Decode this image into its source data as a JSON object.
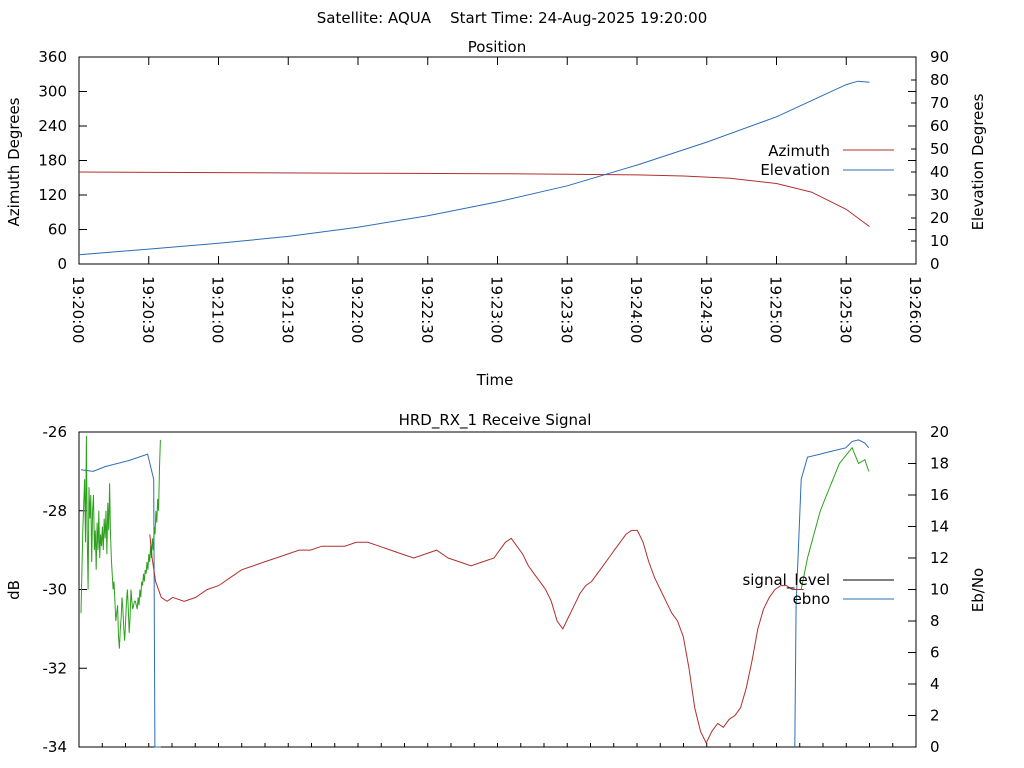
{
  "header": {
    "text": "Satellite: AQUA    Start Time: 24-Aug-2025 19:20:00"
  },
  "chart_data": [
    {
      "type": "line",
      "title": "Position",
      "xlabel": "Time",
      "ylabel": "Azimuth Degrees",
      "y2label": "Elevation Degrees",
      "ylim": [
        0,
        360
      ],
      "y2lim": [
        0,
        90
      ],
      "yticks": [
        "360",
        "300",
        "240",
        "180",
        "120",
        "60",
        "0"
      ],
      "y2ticks": [
        "90",
        "80",
        "70",
        "60",
        "50",
        "40",
        "30",
        "20",
        "10",
        "0"
      ],
      "xticks": [
        "19:20:00",
        "19:20:30",
        "19:21:00",
        "19:21:30",
        "19:22:00",
        "19:22:30",
        "19:23:00",
        "19:23:30",
        "19:24:00",
        "19:24:30",
        "19:25:00",
        "19:25:30",
        "19:26:00"
      ],
      "x_unit": "seconds after 19:20:00",
      "xlim": [
        0,
        360
      ],
      "legend": "right",
      "series": [
        {
          "name": "Azimuth",
          "axis": "y",
          "color": "#b03030",
          "x": [
            0,
            60,
            120,
            180,
            210,
            240,
            260,
            280,
            300,
            315,
            325,
            330,
            335,
            340
          ],
          "values": [
            160,
            159,
            158,
            157,
            156,
            155,
            153,
            149,
            140,
            125,
            105,
            95,
            80,
            65
          ]
        },
        {
          "name": "Elevation",
          "axis": "y2",
          "color": "#2e6db5",
          "x": [
            0,
            30,
            60,
            90,
            120,
            150,
            180,
            210,
            240,
            270,
            300,
            315,
            330,
            335,
            340
          ],
          "values": [
            4,
            6.5,
            9,
            12,
            16,
            21,
            27,
            34,
            43,
            53,
            64,
            71,
            78,
            79.5,
            79
          ]
        }
      ]
    },
    {
      "type": "line",
      "title": "HRD_RX_1 Receive Signal",
      "ylabel": "dB",
      "y2label": "Eb/No",
      "ylim": [
        -34,
        -26
      ],
      "y2lim": [
        0,
        20
      ],
      "yticks": [
        "-26",
        "-28",
        "-30",
        "-32",
        "-34"
      ],
      "y2ticks": [
        "20",
        "18",
        "16",
        "14",
        "12",
        "10",
        "8",
        "6",
        "4",
        "2",
        "0"
      ],
      "legend": "right",
      "series": [
        {
          "name": "signal_level",
          "axis": "y",
          "legend_color": "#000000",
          "color": "#2ea01e",
          "x": [
            0,
            2,
            4,
            5,
            6,
            7,
            8,
            9,
            10,
            11,
            12,
            13,
            14,
            15,
            16,
            17,
            18,
            19,
            20,
            21,
            22,
            23,
            24,
            25,
            26,
            27,
            28,
            29,
            30,
            31,
            32,
            33,
            34,
            35,
            36,
            37,
            38,
            39,
            40,
            41,
            42,
            43,
            44,
            45,
            46,
            47,
            48,
            49,
            50,
            51,
            52,
            53,
            54,
            55,
            56,
            57,
            58,
            59,
            60,
            61,
            62,
            63,
            64,
            65,
            66,
            67,
            68,
            69,
            70,
            71,
            72,
            73,
            74,
            75,
            76,
            77,
            78,
            79,
            80,
            81,
            82,
            83,
            84,
            85,
            86,
            87,
            88,
            89
          ],
          "values": [
            -30.6,
            -28.5,
            -27.2,
            -28.8,
            -26.1,
            -28.6,
            -30,
            -27.4,
            -28.2,
            -27.6,
            -29.3,
            -28.0,
            -27.6,
            -29.0,
            -28.5,
            -29.5,
            -28.3,
            -29.0,
            -28.0,
            -29.2,
            -28.6,
            -28.9,
            -28.4,
            -29.0,
            -28.2,
            -28.7,
            -28.0,
            -29.1,
            -27.8,
            -28.5,
            -27.3,
            -28.5,
            -29.2,
            -29.6,
            -30.0,
            -29.8,
            -30.3,
            -30.8,
            -30.6,
            -30.4,
            -31.2,
            -31.5,
            -31.0,
            -30.7,
            -30.2,
            -30.5,
            -31.0,
            -31.3,
            -30.8,
            -30.3,
            -30.0,
            -30.5,
            -31.1,
            -30.7,
            -30.0,
            -30.3,
            -30.5,
            -30.4,
            -30.3,
            -30.3,
            -30.4,
            -30.5,
            -30.2,
            -30.4,
            -30.0,
            -30.2,
            -29.8,
            -29.9,
            -29.6,
            -29.8,
            -29.5,
            -29.6,
            -29.3,
            -29.5,
            -29.1,
            -29.3,
            -28.9,
            -29.2,
            -28.7,
            -29.0,
            -28.4,
            -28.6,
            -28.0,
            -28.3,
            -27.7,
            -28.0,
            -26.9,
            -26.2
          ]
        },
        {
          "name": "ebno",
          "axis": "y2",
          "color": "#2e6db5",
          "x": [
            0,
            10,
            20,
            40,
            55,
            60,
            61,
            62,
            64,
            66,
            68,
            70,
            75,
            80,
            85,
            88,
            89,
            90,
            92,
            95
          ],
          "values": [
            17.6,
            17.5,
            17.8,
            18.2,
            18.6,
            17.0,
            0,
            0,
            0,
            0,
            0.3,
            0,
            0,
            0,
            0,
            0,
            0,
            0,
            0,
            0
          ]
        },
        {
          "name": "signal_level",
          "axis": "y",
          "color": "#b03030",
          "x": [
            60,
            62,
            65,
            70,
            75,
            80,
            90,
            100,
            110,
            120,
            130,
            140,
            150,
            160,
            170,
            180,
            190,
            200,
            210,
            220,
            230,
            240,
            250,
            260,
            270,
            280,
            290,
            300,
            310,
            320,
            330,
            340,
            350,
            360,
            365,
            370,
            375,
            380,
            385,
            390,
            395,
            400,
            405,
            410,
            415,
            420,
            425,
            430,
            435,
            440,
            445,
            450,
            455,
            460,
            465,
            470,
            475,
            480,
            485,
            490,
            495,
            500,
            505,
            510,
            515,
            520,
            525,
            530,
            535,
            540,
            545,
            550,
            555,
            560,
            565,
            570,
            575,
            580,
            585,
            590,
            595,
            600,
            605,
            610,
            615,
            620,
            625,
            630
          ],
          "values": [
            -28.6,
            -29.2,
            -29.8,
            -30.2,
            -30.3,
            -30.2,
            -30.3,
            -30.2,
            -30.0,
            -29.9,
            -29.7,
            -29.5,
            -29.4,
            -29.3,
            -29.2,
            -29.1,
            -29.0,
            -29.0,
            -28.9,
            -28.9,
            -28.9,
            -28.8,
            -28.8,
            -28.9,
            -29.0,
            -29.1,
            -29.2,
            -29.1,
            -29.0,
            -29.2,
            -29.3,
            -29.4,
            -29.3,
            -29.2,
            -29.0,
            -28.8,
            -28.7,
            -28.9,
            -29.1,
            -29.4,
            -29.6,
            -29.8,
            -30.0,
            -30.3,
            -30.8,
            -31.0,
            -30.7,
            -30.4,
            -30.1,
            -29.9,
            -29.8,
            -29.6,
            -29.4,
            -29.2,
            -29.0,
            -28.8,
            -28.6,
            -28.5,
            -28.5,
            -28.8,
            -29.3,
            -29.7,
            -30.0,
            -30.3,
            -30.6,
            -30.8,
            -31.2,
            -32.0,
            -33.0,
            -33.6,
            -33.9,
            -33.6,
            -33.4,
            -33.5,
            -33.3,
            -33.2,
            -33.0,
            -32.5,
            -31.8,
            -31.0,
            -30.5,
            -30.2,
            -30.0,
            -29.9,
            -29.9,
            -30.0,
            -30.0,
            -30.0
          ]
        }
      ]
    }
  ]
}
